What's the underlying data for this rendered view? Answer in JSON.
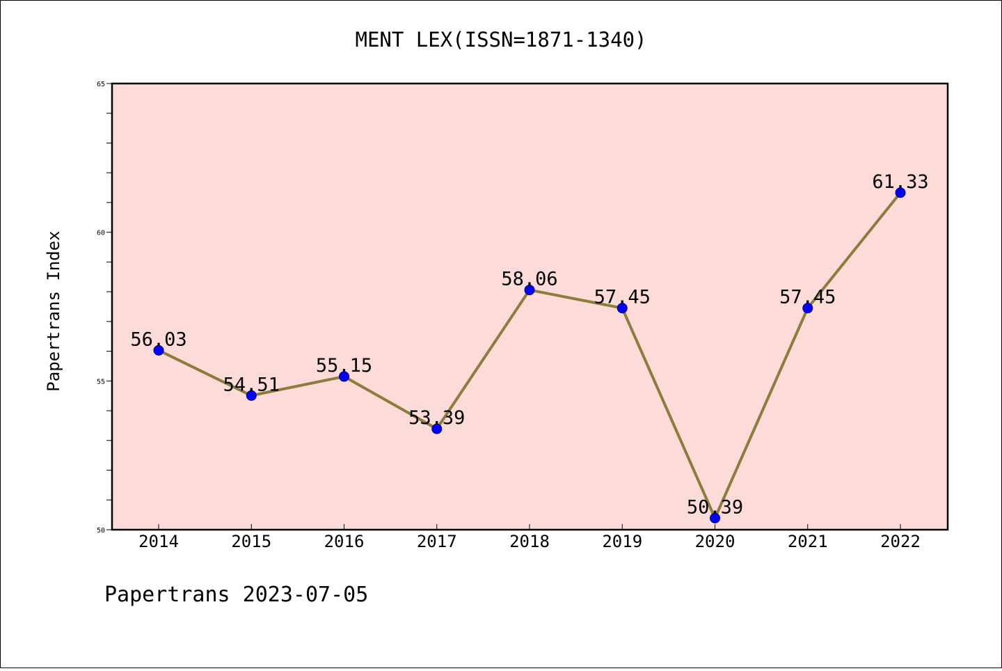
{
  "chart_data": {
    "type": "line",
    "title": "MENT LEX(ISSN=1871-1340)",
    "xlabel": "",
    "ylabel": "Papertrans Index",
    "categories": [
      "2014",
      "2015",
      "2016",
      "2017",
      "2018",
      "2019",
      "2020",
      "2021",
      "2022"
    ],
    "series": [
      {
        "values": [
          56.03,
          54.51,
          55.15,
          53.39,
          58.06,
          57.45,
          50.39,
          57.45,
          61.33
        ]
      }
    ],
    "data_labels": [
      "56.03",
      "54.51",
      "55.15",
      "53.39",
      "58.06",
      "57.45",
      "50.39",
      "57.45",
      "61.33"
    ],
    "ylim": [
      50,
      65
    ],
    "yticks": [
      50,
      55,
      60,
      65
    ],
    "yticks_labels": [
      "50",
      "55",
      "60",
      "65"
    ],
    "legend": "none",
    "grid": false,
    "colors": {
      "plot_background": "#fddbd8",
      "line": "#8b7d3c",
      "marker": "#0000ff",
      "marker_edge": "#000080"
    }
  },
  "footer": "Papertrans 2023-07-05"
}
